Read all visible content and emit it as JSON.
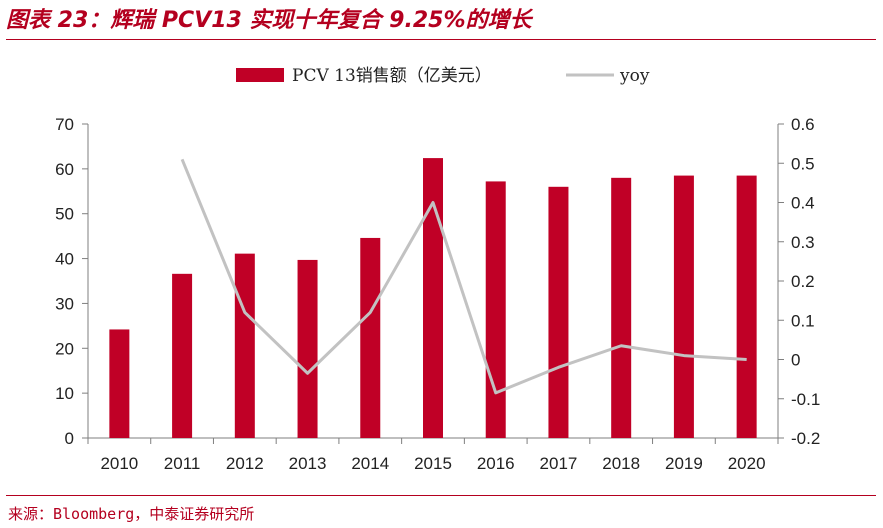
{
  "page": {
    "title": "图表 23：辉瑞 PCV13 实现十年复合 9.25%的增长",
    "source": "来源：Bloomberg，中泰证券研究所"
  },
  "chart_data": {
    "type": "bar",
    "categories": [
      "2010",
      "2011",
      "2012",
      "2013",
      "2014",
      "2015",
      "2016",
      "2017",
      "2018",
      "2019",
      "2020"
    ],
    "series": [
      {
        "name": "PCV 13销售额（亿美元）",
        "type": "bar",
        "axis": "left",
        "color": "#c00026",
        "values": [
          24.2,
          36.6,
          41.1,
          39.7,
          44.6,
          62.4,
          57.2,
          56.0,
          58.0,
          58.5,
          58.5
        ]
      },
      {
        "name": "yoy",
        "type": "line",
        "axis": "right",
        "color": "#c2c2c2",
        "values": [
          null,
          0.51,
          0.12,
          -0.035,
          0.12,
          0.4,
          -0.085,
          -0.02,
          0.035,
          0.01,
          0.0
        ]
      }
    ],
    "y_left": {
      "lim": [
        0,
        70
      ],
      "ticks": [
        "0",
        "10",
        "20",
        "30",
        "40",
        "50",
        "60",
        "70"
      ]
    },
    "y_right": {
      "lim": [
        -0.2,
        0.6
      ],
      "ticks": [
        "-0.2",
        "-0.1",
        "0",
        "0.1",
        "0.2",
        "0.3",
        "0.4",
        "0.5",
        "0.6"
      ]
    },
    "xlabel": "",
    "ylabel": "",
    "grid": false,
    "legend_position": "top-center"
  }
}
